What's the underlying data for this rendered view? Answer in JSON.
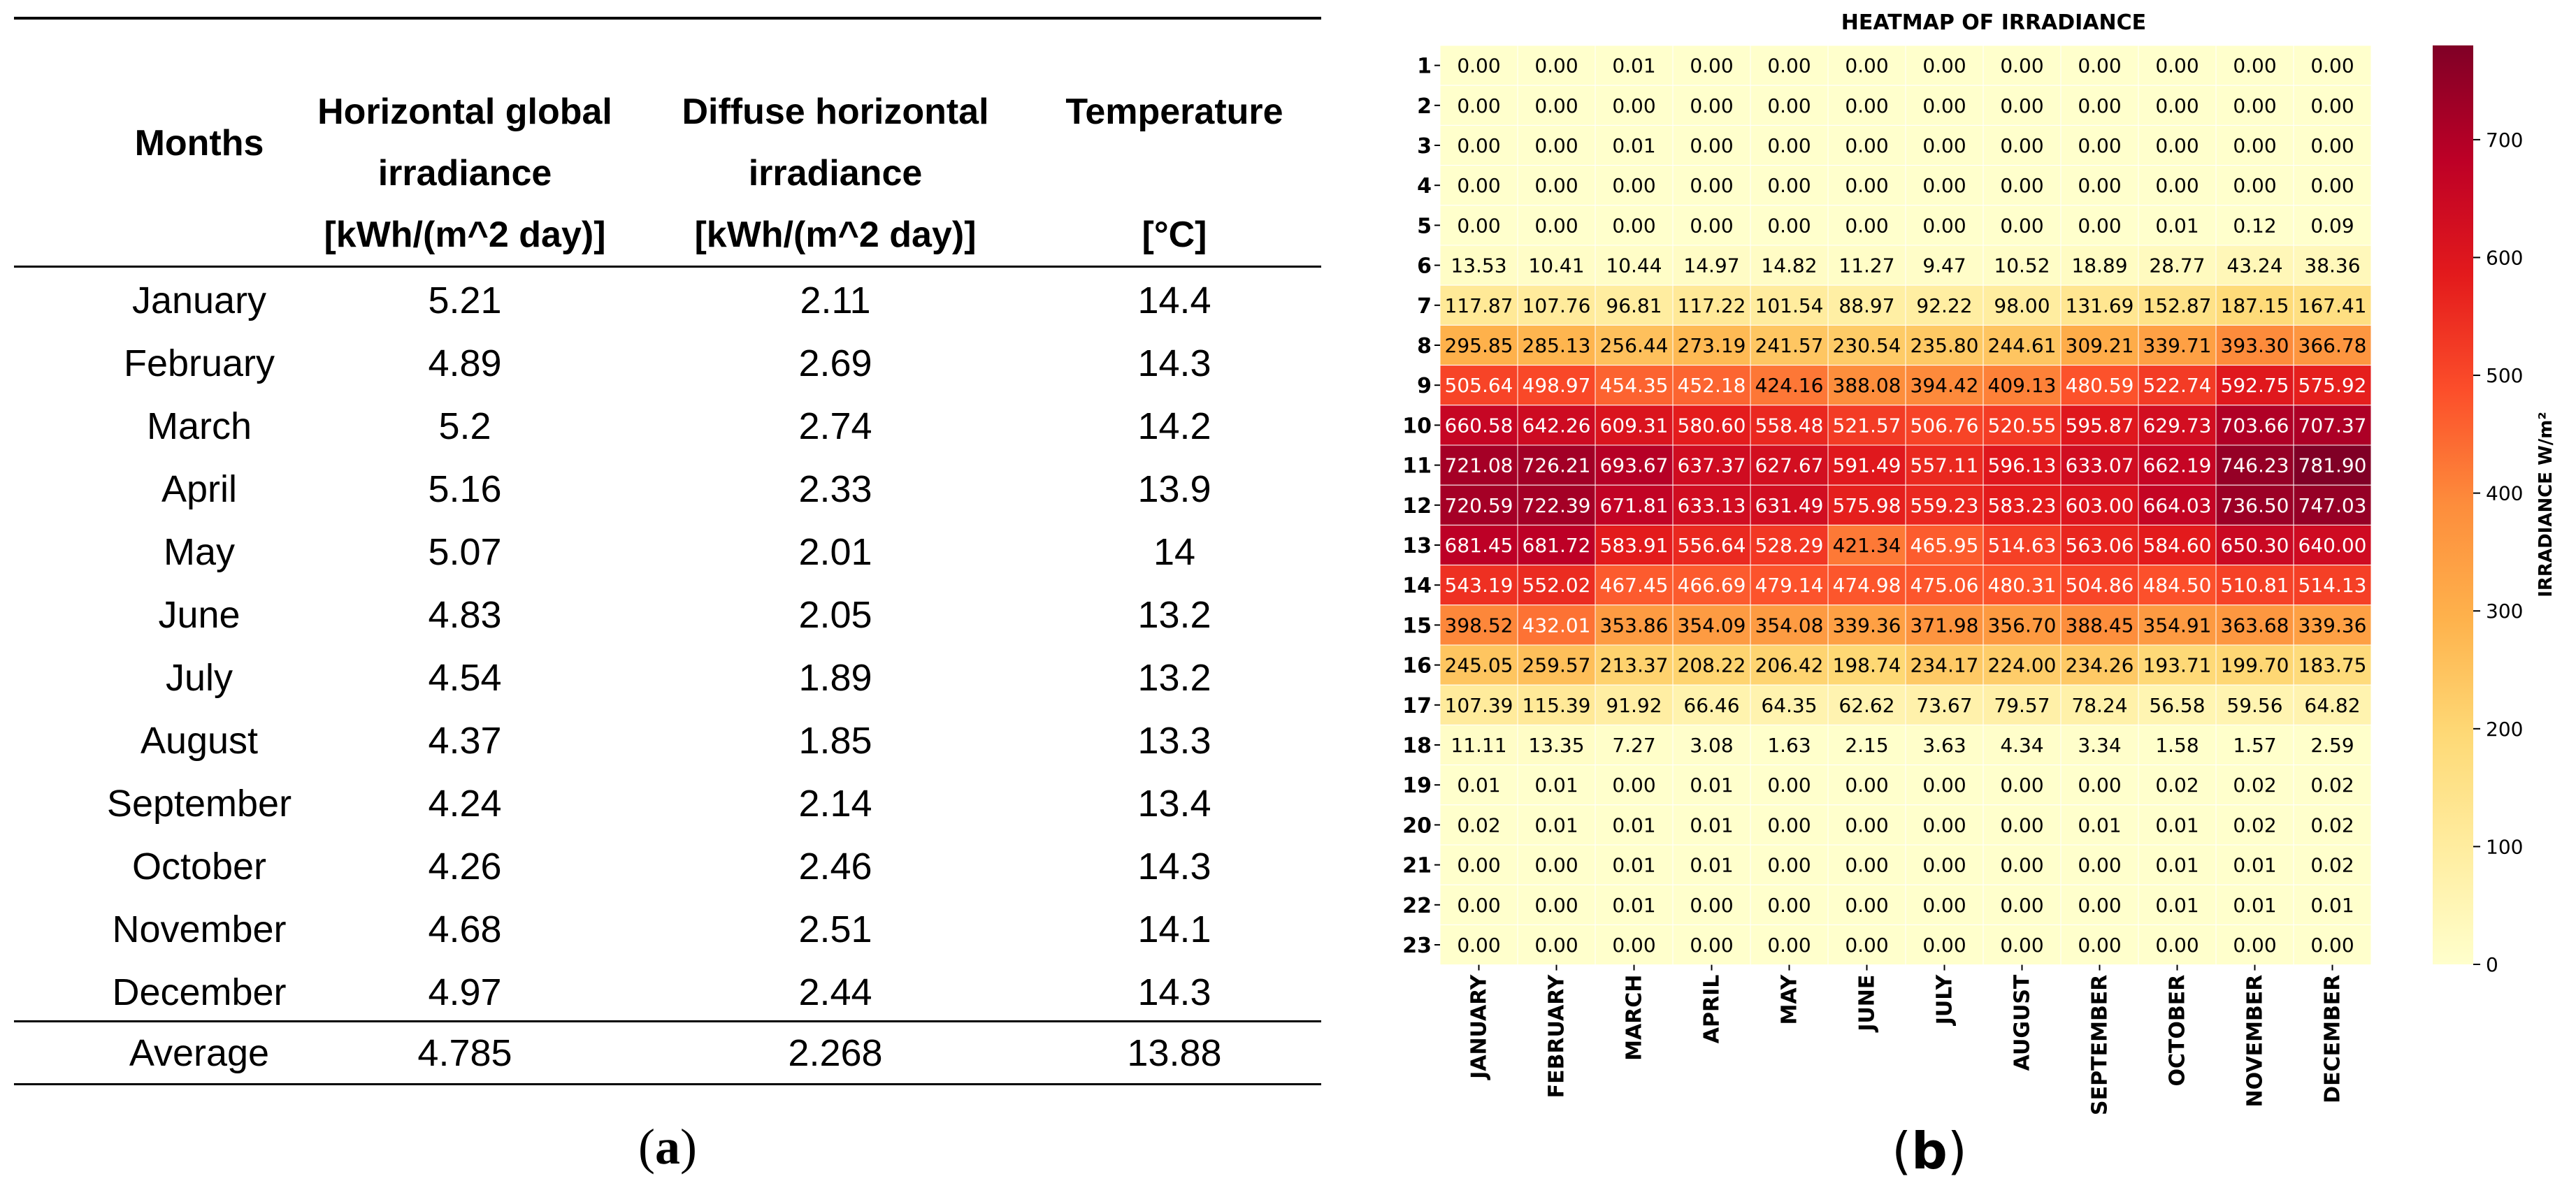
{
  "panel_a": {
    "caption_open": "(",
    "caption_letter": "a",
    "caption_close": ")",
    "headers": [
      {
        "lines": [
          "Months"
        ]
      },
      {
        "lines": [
          "Horizontal global",
          "irradiance",
          "[kWh/(m^2 day)]"
        ]
      },
      {
        "lines": [
          "Diffuse horizontal",
          "irradiance",
          "[kWh/(m^2 day)]"
        ]
      },
      {
        "lines": [
          "Temperature",
          "",
          "[°C]"
        ]
      }
    ],
    "rows": [
      [
        "January",
        "5.21",
        "2.11",
        "14.4"
      ],
      [
        "February",
        "4.89",
        "2.69",
        "14.3"
      ],
      [
        "March",
        "5.2",
        "2.74",
        "14.2"
      ],
      [
        "April",
        "5.16",
        "2.33",
        "13.9"
      ],
      [
        "May",
        "5.07",
        "2.01",
        "14"
      ],
      [
        "June",
        "4.83",
        "2.05",
        "13.2"
      ],
      [
        "July",
        "4.54",
        "1.89",
        "13.2"
      ],
      [
        "August",
        "4.37",
        "1.85",
        "13.3"
      ],
      [
        "September",
        "4.24",
        "2.14",
        "13.4"
      ],
      [
        "October",
        "4.26",
        "2.46",
        "14.3"
      ],
      [
        "November",
        "4.68",
        "2.51",
        "14.1"
      ],
      [
        "December",
        "4.97",
        "2.44",
        "14.3"
      ]
    ],
    "average": [
      "Average",
      "4.785",
      "2.268",
      "13.88"
    ]
  },
  "panel_b": {
    "caption_open": "(",
    "caption_letter": "b",
    "caption_close": ")"
  },
  "chart_data": {
    "type": "heatmap",
    "title": "HEATMAP OF IRRADIANCE",
    "colorbar_label": "IRRADIANCE W/m²",
    "colorbar_ticks": [
      "0",
      "100",
      "200",
      "300",
      "400",
      "500",
      "600",
      "700"
    ],
    "colorbar_range": [
      0,
      780
    ],
    "colormap": [
      "#ffffcc",
      "#ffeda0",
      "#fed976",
      "#feb24c",
      "#fd8d3c",
      "#fc4e2a",
      "#e31a1c",
      "#bd0026",
      "#800026"
    ],
    "x": [
      "JANUARY",
      "FEBRUARY",
      "MARCH",
      "APRIL",
      "MAY",
      "JUNE",
      "JULY",
      "AUGUST",
      "SEPTEMBER",
      "OCTOBER",
      "NOVEMBER",
      "DECEMBER"
    ],
    "y": [
      "1",
      "2",
      "3",
      "4",
      "5",
      "6",
      "7",
      "8",
      "9",
      "10",
      "11",
      "12",
      "13",
      "14",
      "15",
      "16",
      "17",
      "18",
      "19",
      "20",
      "21",
      "22",
      "23"
    ],
    "values": [
      [
        "0.00",
        "0.00",
        "0.01",
        "0.00",
        "0.00",
        "0.00",
        "0.00",
        "0.00",
        "0.00",
        "0.00",
        "0.00",
        "0.00"
      ],
      [
        "0.00",
        "0.00",
        "0.00",
        "0.00",
        "0.00",
        "0.00",
        "0.00",
        "0.00",
        "0.00",
        "0.00",
        "0.00",
        "0.00"
      ],
      [
        "0.00",
        "0.00",
        "0.01",
        "0.00",
        "0.00",
        "0.00",
        "0.00",
        "0.00",
        "0.00",
        "0.00",
        "0.00",
        "0.00"
      ],
      [
        "0.00",
        "0.00",
        "0.00",
        "0.00",
        "0.00",
        "0.00",
        "0.00",
        "0.00",
        "0.00",
        "0.00",
        "0.00",
        "0.00"
      ],
      [
        "0.00",
        "0.00",
        "0.00",
        "0.00",
        "0.00",
        "0.00",
        "0.00",
        "0.00",
        "0.00",
        "0.01",
        "0.12",
        "0.09"
      ],
      [
        "13.53",
        "10.41",
        "10.44",
        "14.97",
        "14.82",
        "11.27",
        "9.47",
        "10.52",
        "18.89",
        "28.77",
        "43.24",
        "38.36"
      ],
      [
        "117.87",
        "107.76",
        "96.81",
        "117.22",
        "101.54",
        "88.97",
        "92.22",
        "98.00",
        "131.69",
        "152.87",
        "187.15",
        "167.41"
      ],
      [
        "295.85",
        "285.13",
        "256.44",
        "273.19",
        "241.57",
        "230.54",
        "235.80",
        "244.61",
        "309.21",
        "339.71",
        "393.30",
        "366.78"
      ],
      [
        "505.64",
        "498.97",
        "454.35",
        "452.18",
        "424.16",
        "388.08",
        "394.42",
        "409.13",
        "480.59",
        "522.74",
        "592.75",
        "575.92"
      ],
      [
        "660.58",
        "642.26",
        "609.31",
        "580.60",
        "558.48",
        "521.57",
        "506.76",
        "520.55",
        "595.87",
        "629.73",
        "703.66",
        "707.37"
      ],
      [
        "721.08",
        "726.21",
        "693.67",
        "637.37",
        "627.67",
        "591.49",
        "557.11",
        "596.13",
        "633.07",
        "662.19",
        "746.23",
        "781.90"
      ],
      [
        "720.59",
        "722.39",
        "671.81",
        "633.13",
        "631.49",
        "575.98",
        "559.23",
        "583.23",
        "603.00",
        "664.03",
        "736.50",
        "747.03"
      ],
      [
        "681.45",
        "681.72",
        "583.91",
        "556.64",
        "528.29",
        "421.34",
        "465.95",
        "514.63",
        "563.06",
        "584.60",
        "650.30",
        "640.00"
      ],
      [
        "543.19",
        "552.02",
        "467.45",
        "466.69",
        "479.14",
        "474.98",
        "475.06",
        "480.31",
        "504.86",
        "484.50",
        "510.81",
        "514.13"
      ],
      [
        "398.52",
        "432.01",
        "353.86",
        "354.09",
        "354.08",
        "339.36",
        "371.98",
        "356.70",
        "388.45",
        "354.91",
        "363.68",
        "339.36"
      ],
      [
        "245.05",
        "259.57",
        "213.37",
        "208.22",
        "206.42",
        "198.74",
        "234.17",
        "224.00",
        "234.26",
        "193.71",
        "199.70",
        "183.75"
      ],
      [
        "107.39",
        "115.39",
        "91.92",
        "66.46",
        "64.35",
        "62.62",
        "73.67",
        "79.57",
        "78.24",
        "56.58",
        "59.56",
        "64.82"
      ],
      [
        "11.11",
        "13.35",
        "7.27",
        "3.08",
        "1.63",
        "2.15",
        "3.63",
        "4.34",
        "3.34",
        "1.58",
        "1.57",
        "2.59"
      ],
      [
        "0.01",
        "0.01",
        "0.00",
        "0.01",
        "0.00",
        "0.00",
        "0.00",
        "0.00",
        "0.00",
        "0.02",
        "0.02",
        "0.02"
      ],
      [
        "0.02",
        "0.01",
        "0.01",
        "0.01",
        "0.00",
        "0.00",
        "0.00",
        "0.00",
        "0.01",
        "0.01",
        "0.02",
        "0.02"
      ],
      [
        "0.00",
        "0.00",
        "0.01",
        "0.01",
        "0.00",
        "0.00",
        "0.00",
        "0.00",
        "0.00",
        "0.01",
        "0.01",
        "0.02"
      ],
      [
        "0.00",
        "0.00",
        "0.01",
        "0.00",
        "0.00",
        "0.00",
        "0.00",
        "0.00",
        "0.00",
        "0.01",
        "0.01",
        "0.01"
      ],
      [
        "0.00",
        "0.00",
        "0.00",
        "0.00",
        "0.00",
        "0.00",
        "0.00",
        "0.00",
        "0.00",
        "0.00",
        "0.00",
        "0.00"
      ]
    ]
  }
}
